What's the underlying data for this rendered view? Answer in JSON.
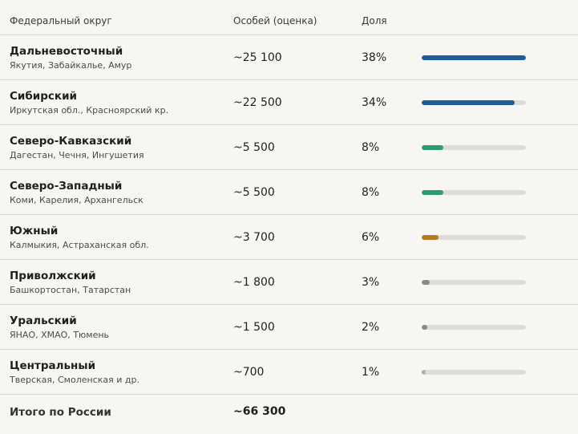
{
  "header": {
    "district": "Федеральный округ",
    "count": "Особей (оценка)",
    "share": "Доля"
  },
  "rows": [
    {
      "name": "Дальневосточный",
      "regions": "Якутия, Забайкалье, Амур",
      "count": "~25 100",
      "share": "38%",
      "share_value": 38,
      "color": "#1f5c99"
    },
    {
      "name": "Сибирский",
      "regions": "Иркутская обл., Красноярский кр.",
      "count": "~22 500",
      "share": "34%",
      "share_value": 34,
      "color": "#1f5c99"
    },
    {
      "name": "Северо-Кавказский",
      "regions": "Дагестан, Чечня, Ингушетия",
      "count": "~5 500",
      "share": "8%",
      "share_value": 8,
      "color": "#2e9c73"
    },
    {
      "name": "Северо-Западный",
      "regions": "Коми, Карелия, Архангельск",
      "count": "~5 500",
      "share": "8%",
      "share_value": 8,
      "color": "#2e9c73"
    },
    {
      "name": "Южный",
      "regions": "Калмыкия, Астраханская обл.",
      "count": "~3 700",
      "share": "6%",
      "share_value": 6,
      "color": "#b87a1e"
    },
    {
      "name": "Приволжский",
      "regions": "Башкортостан, Татарстан",
      "count": "~1 800",
      "share": "3%",
      "share_value": 3,
      "color": "#8a8a8a"
    },
    {
      "name": "Уральский",
      "regions": "ЯНАО, ХМАО, Тюмень",
      "count": "~1 500",
      "share": "2%",
      "share_value": 2,
      "color": "#8a8a8a"
    },
    {
      "name": "Центральный",
      "regions": "Тверская, Смоленская и др.",
      "count": "~700",
      "share": "1%",
      "share_value": 1,
      "color": "#b0b0b0"
    }
  ],
  "total": {
    "label": "Итого по России",
    "count": "~66 300"
  }
}
